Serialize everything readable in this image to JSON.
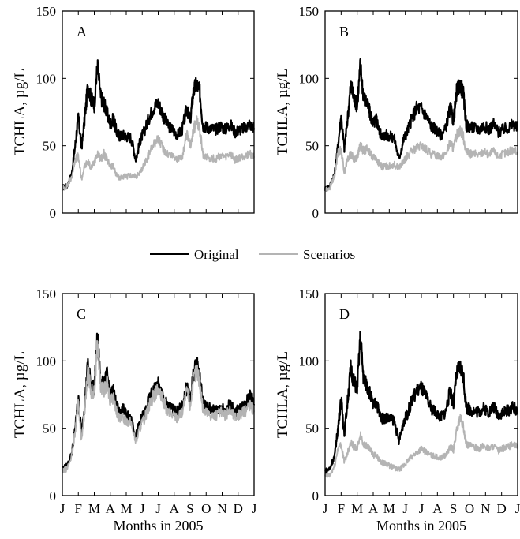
{
  "legend": {
    "items": [
      {
        "label": "Original",
        "color": "#000000"
      },
      {
        "label": "Scenarios",
        "color": "#b4b4b4"
      }
    ],
    "placement": "center, between top and bottom rows"
  },
  "chart_data": [
    {
      "type": "line",
      "panel": "A",
      "ylabel": "TCHLA, µg/L",
      "xlabel": "",
      "ylim": [
        0,
        150
      ],
      "yticks": [
        "0",
        "50",
        "100",
        "150"
      ],
      "xticklabels": [],
      "grid": false,
      "x_units": "month of 2005 (0 = January start, 12 = next January)",
      "series": [
        {
          "name": "Original",
          "color": "#000000",
          "x": [
            0,
            0.3,
            0.6,
            0.8,
            1.0,
            1.2,
            1.4,
            1.6,
            1.8,
            2.0,
            2.2,
            2.4,
            2.6,
            2.8,
            3.0,
            3.2,
            3.4,
            3.6,
            3.8,
            4.0,
            4.3,
            4.6,
            4.9,
            5.1,
            5.4,
            5.7,
            6.0,
            6.3,
            6.6,
            6.9,
            7.2,
            7.5,
            7.8,
            8.0,
            8.2,
            8.4,
            8.6,
            8.8,
            9.0,
            9.3,
            9.6,
            9.9,
            10.2,
            10.5,
            10.8,
            11.1,
            11.4,
            11.7,
            12.0
          ],
          "y": [
            19,
            20,
            30,
            50,
            72,
            48,
            70,
            95,
            85,
            80,
            110,
            86,
            82,
            74,
            66,
            70,
            60,
            57,
            58,
            57,
            56,
            40,
            55,
            60,
            70,
            78,
            82,
            73,
            65,
            62,
            58,
            62,
            78,
            68,
            90,
            96,
            90,
            65,
            64,
            63,
            62,
            65,
            62,
            66,
            60,
            62,
            63,
            66,
            63
          ]
        },
        {
          "name": "Scenarios",
          "color": "#b4b4b4",
          "x": [
            0,
            0.3,
            0.6,
            0.8,
            1.0,
            1.2,
            1.4,
            1.6,
            1.8,
            2.0,
            2.2,
            2.4,
            2.6,
            2.8,
            3.0,
            3.2,
            3.4,
            3.6,
            3.8,
            4.0,
            4.3,
            4.6,
            4.9,
            5.1,
            5.4,
            5.7,
            6.0,
            6.3,
            6.6,
            6.9,
            7.2,
            7.5,
            7.8,
            8.0,
            8.2,
            8.4,
            8.6,
            8.8,
            9.0,
            9.3,
            9.6,
            9.9,
            10.2,
            10.5,
            10.8,
            11.1,
            11.4,
            11.7,
            12.0
          ],
          "y": [
            18,
            20,
            27,
            40,
            42,
            25,
            35,
            38,
            34,
            37,
            45,
            40,
            44,
            39,
            35,
            34,
            28,
            26,
            27,
            27,
            28,
            27,
            30,
            36,
            43,
            52,
            55,
            48,
            44,
            43,
            40,
            42,
            58,
            50,
            62,
            68,
            62,
            43,
            42,
            41,
            40,
            43,
            41,
            44,
            39,
            41,
            42,
            44,
            42
          ]
        }
      ]
    },
    {
      "type": "line",
      "panel": "B",
      "ylabel": "TCHLA, µg/L",
      "xlabel": "",
      "ylim": [
        0,
        150
      ],
      "yticks": [
        "0",
        "50",
        "100",
        "150"
      ],
      "xticklabels": [],
      "grid": false,
      "x_units": "month of 2005 (0 = January start, 12 = next January)",
      "series": [
        {
          "name": "Original",
          "color": "#000000",
          "x": [
            0,
            0.3,
            0.6,
            0.8,
            1.0,
            1.2,
            1.4,
            1.6,
            1.8,
            2.0,
            2.2,
            2.4,
            2.6,
            2.8,
            3.0,
            3.2,
            3.4,
            3.6,
            3.8,
            4.0,
            4.3,
            4.6,
            4.9,
            5.1,
            5.4,
            5.7,
            6.0,
            6.3,
            6.6,
            6.9,
            7.2,
            7.5,
            7.8,
            8.0,
            8.2,
            8.4,
            8.6,
            8.8,
            9.0,
            9.3,
            9.6,
            9.9,
            10.2,
            10.5,
            10.8,
            11.1,
            11.4,
            11.7,
            12.0
          ],
          "y": [
            18,
            20,
            30,
            50,
            72,
            48,
            70,
            95,
            85,
            80,
            110,
            86,
            82,
            74,
            66,
            70,
            60,
            57,
            58,
            57,
            56,
            40,
            55,
            60,
            70,
            78,
            78,
            72,
            65,
            62,
            58,
            62,
            78,
            68,
            90,
            96,
            90,
            65,
            64,
            63,
            62,
            65,
            62,
            66,
            60,
            62,
            63,
            66,
            63
          ]
        },
        {
          "name": "Scenarios",
          "color": "#b4b4b4",
          "x": [
            0,
            0.3,
            0.6,
            0.8,
            1.0,
            1.2,
            1.4,
            1.6,
            1.8,
            2.0,
            2.2,
            2.4,
            2.6,
            2.8,
            3.0,
            3.2,
            3.4,
            3.6,
            3.8,
            4.0,
            4.3,
            4.6,
            4.9,
            5.1,
            5.4,
            5.7,
            6.0,
            6.3,
            6.6,
            6.9,
            7.2,
            7.5,
            7.8,
            8.0,
            8.2,
            8.4,
            8.6,
            8.8,
            9.0,
            9.3,
            9.6,
            9.9,
            10.2,
            10.5,
            10.8,
            11.1,
            11.4,
            11.7,
            12.0
          ],
          "y": [
            17,
            19,
            28,
            45,
            47,
            30,
            40,
            44,
            40,
            42,
            50,
            46,
            48,
            44,
            42,
            40,
            36,
            34,
            35,
            35,
            36,
            34,
            38,
            42,
            46,
            48,
            50,
            47,
            44,
            43,
            42,
            44,
            52,
            48,
            58,
            62,
            58,
            45,
            44,
            44,
            43,
            46,
            43,
            46,
            42,
            44,
            45,
            47,
            45
          ]
        }
      ]
    },
    {
      "type": "line",
      "panel": "C",
      "ylabel": "TCHLA, µg/L",
      "xlabel": "Months in 2005",
      "ylim": [
        0,
        150
      ],
      "yticks": [
        "0",
        "50",
        "100",
        "150"
      ],
      "xticklabels": [
        "J",
        "F",
        "M",
        "A",
        "M",
        "J",
        "J",
        "A",
        "S",
        "O",
        "N",
        "D",
        "J"
      ],
      "grid": false,
      "x_units": "month of 2005 (0 = January start, 12 = next January)",
      "series": [
        {
          "name": "Original",
          "color": "#000000",
          "x": [
            0,
            0.3,
            0.6,
            0.8,
            1.0,
            1.2,
            1.4,
            1.6,
            1.8,
            2.0,
            2.2,
            2.4,
            2.6,
            2.8,
            3.0,
            3.2,
            3.4,
            3.6,
            3.8,
            4.0,
            4.3,
            4.6,
            4.9,
            5.1,
            5.4,
            5.7,
            6.0,
            6.3,
            6.6,
            6.9,
            7.2,
            7.5,
            7.8,
            8.0,
            8.2,
            8.4,
            8.6,
            8.8,
            9.0,
            9.3,
            9.6,
            9.9,
            10.2,
            10.5,
            10.8,
            11.1,
            11.4,
            11.7,
            12.0
          ],
          "y": [
            20,
            22,
            32,
            50,
            72,
            45,
            68,
            98,
            82,
            80,
            118,
            84,
            82,
            90,
            74,
            78,
            66,
            60,
            64,
            60,
            58,
            44,
            56,
            60,
            70,
            78,
            82,
            73,
            66,
            64,
            62,
            66,
            82,
            70,
            90,
            98,
            88,
            68,
            66,
            64,
            63,
            66,
            63,
            68,
            62,
            64,
            66,
            74,
            68
          ]
        },
        {
          "name": "Scenarios",
          "color": "#b4b4b4",
          "x": [
            0,
            0.3,
            0.6,
            0.8,
            1.0,
            1.2,
            1.4,
            1.6,
            1.8,
            2.0,
            2.2,
            2.4,
            2.6,
            2.8,
            3.0,
            3.2,
            3.4,
            3.6,
            3.8,
            4.0,
            4.3,
            4.6,
            4.9,
            5.1,
            5.4,
            5.7,
            6.0,
            6.3,
            6.6,
            6.9,
            7.2,
            7.5,
            7.8,
            8.0,
            8.2,
            8.4,
            8.6,
            8.8,
            9.0,
            9.3,
            9.6,
            9.9,
            10.2,
            10.5,
            10.8,
            11.1,
            11.4,
            11.7,
            12.0
          ],
          "y": [
            18,
            20,
            30,
            48,
            70,
            40,
            64,
            92,
            78,
            76,
            114,
            80,
            78,
            84,
            70,
            72,
            62,
            56,
            58,
            56,
            54,
            40,
            52,
            56,
            66,
            74,
            78,
            70,
            62,
            60,
            58,
            62,
            78,
            66,
            86,
            94,
            84,
            64,
            62,
            60,
            59,
            62,
            59,
            64,
            58,
            60,
            62,
            68,
            63
          ]
        }
      ]
    },
    {
      "type": "line",
      "panel": "D",
      "ylabel": "TCHLA, µg/L",
      "xlabel": "Months in 2005",
      "ylim": [
        0,
        150
      ],
      "yticks": [
        "0",
        "50",
        "100",
        "150"
      ],
      "xticklabels": [
        "J",
        "F",
        "M",
        "A",
        "M",
        "J",
        "J",
        "A",
        "S",
        "O",
        "N",
        "D",
        "J"
      ],
      "grid": false,
      "x_units": "month of 2005 (0 = January start, 12 = next January)",
      "series": [
        {
          "name": "Original",
          "color": "#000000",
          "x": [
            0,
            0.3,
            0.6,
            0.8,
            1.0,
            1.2,
            1.4,
            1.6,
            1.8,
            2.0,
            2.2,
            2.4,
            2.6,
            2.8,
            3.0,
            3.2,
            3.4,
            3.6,
            3.8,
            4.0,
            4.3,
            4.6,
            4.9,
            5.1,
            5.4,
            5.7,
            6.0,
            6.3,
            6.6,
            6.9,
            7.2,
            7.5,
            7.8,
            8.0,
            8.2,
            8.4,
            8.6,
            8.8,
            9.0,
            9.3,
            9.6,
            9.9,
            10.2,
            10.5,
            10.8,
            11.1,
            11.4,
            11.7,
            12.0
          ],
          "y": [
            18,
            20,
            30,
            50,
            72,
            46,
            70,
            95,
            84,
            80,
            118,
            86,
            82,
            76,
            66,
            70,
            60,
            57,
            58,
            57,
            56,
            40,
            55,
            60,
            70,
            78,
            80,
            73,
            65,
            62,
            58,
            62,
            78,
            68,
            90,
            96,
            90,
            65,
            64,
            63,
            62,
            65,
            62,
            66,
            60,
            62,
            63,
            66,
            63
          ]
        },
        {
          "name": "Scenarios",
          "color": "#b4b4b4",
          "x": [
            0,
            0.3,
            0.6,
            0.8,
            1.0,
            1.2,
            1.4,
            1.6,
            1.8,
            2.0,
            2.2,
            2.4,
            2.6,
            2.8,
            3.0,
            3.2,
            3.4,
            3.6,
            3.8,
            4.0,
            4.3,
            4.6,
            4.9,
            5.1,
            5.4,
            5.7,
            6.0,
            6.3,
            6.6,
            6.9,
            7.2,
            7.5,
            7.8,
            8.0,
            8.2,
            8.4,
            8.6,
            8.8,
            9.0,
            9.3,
            9.6,
            9.9,
            10.2,
            10.5,
            10.8,
            11.1,
            11.4,
            11.7,
            12.0
          ],
          "y": [
            14,
            15,
            22,
            35,
            38,
            25,
            32,
            40,
            36,
            35,
            45,
            38,
            37,
            34,
            30,
            30,
            26,
            24,
            24,
            22,
            21,
            19,
            22,
            25,
            29,
            32,
            35,
            32,
            30,
            29,
            28,
            30,
            36,
            34,
            48,
            58,
            52,
            38,
            37,
            36,
            35,
            37,
            35,
            37,
            33,
            35,
            36,
            38,
            36
          ]
        }
      ]
    }
  ]
}
